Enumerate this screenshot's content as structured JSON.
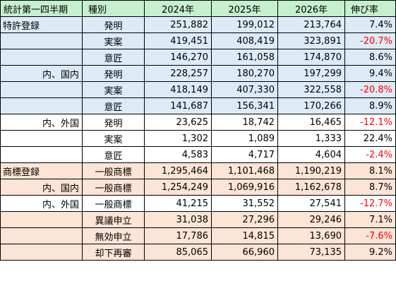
{
  "header": {
    "period": "統計第一四半期",
    "kind": "種別",
    "y2024": "2024年",
    "y2025": "2025年",
    "y2026": "2026年",
    "growth": "伸び率"
  },
  "rows": [
    {
      "group": "特許登録",
      "kind": "発明",
      "y2024": "251,882",
      "y2025": "199,012",
      "y2026": "213,764",
      "growth": "7.4%",
      "neg": false,
      "band": "blue",
      "indent": false
    },
    {
      "group": "",
      "kind": "実案",
      "y2024": "419,451",
      "y2025": "408,419",
      "y2026": "323,891",
      "growth": "-20.7%",
      "neg": true,
      "band": "blue",
      "indent": false
    },
    {
      "group": "",
      "kind": "意匠",
      "y2024": "146,270",
      "y2025": "161,058",
      "y2026": "174,870",
      "growth": "8.6%",
      "neg": false,
      "band": "blue",
      "indent": false
    },
    {
      "group": "内、国内",
      "kind": "発明",
      "y2024": "228,257",
      "y2025": "180,270",
      "y2026": "197,299",
      "growth": "9.4%",
      "neg": false,
      "band": "blue",
      "indent": true
    },
    {
      "group": "",
      "kind": "実案",
      "y2024": "418,149",
      "y2025": "407,330",
      "y2026": "322,558",
      "growth": "-20.8%",
      "neg": true,
      "band": "blue",
      "indent": true
    },
    {
      "group": "",
      "kind": "意匠",
      "y2024": "141,687",
      "y2025": "156,341",
      "y2026": "170,266",
      "growth": "8.9%",
      "neg": false,
      "band": "blue",
      "indent": true
    },
    {
      "group": "内、外国",
      "kind": "発明",
      "y2024": "23,625",
      "y2025": "18,742",
      "y2026": "16,465",
      "growth": "-12.1%",
      "neg": true,
      "band": "white",
      "indent": true
    },
    {
      "group": "",
      "kind": "実案",
      "y2024": "1,302",
      "y2025": "1,089",
      "y2026": "1,333",
      "growth": "22.4%",
      "neg": false,
      "band": "white",
      "indent": true
    },
    {
      "group": "",
      "kind": "意匠",
      "y2024": "4,583",
      "y2025": "4,717",
      "y2026": "4,604",
      "growth": "-2.4%",
      "neg": true,
      "band": "white",
      "indent": true
    },
    {
      "group": "商標登録",
      "kind": "一般商標",
      "y2024": "1,295,464",
      "y2025": "1,101,468",
      "y2026": "1,190,219",
      "growth": "8.1%",
      "neg": false,
      "band": "peach",
      "indent": false
    },
    {
      "group": "内、国内",
      "kind": "一般商標",
      "y2024": "1,254,249",
      "y2025": "1,069,916",
      "y2026": "1,162,678",
      "growth": "8.7%",
      "neg": false,
      "band": "peach",
      "indent": true
    },
    {
      "group": "内、外国",
      "kind": "一般商標",
      "y2024": "41,215",
      "y2025": "31,552",
      "y2026": "27,541",
      "growth": "-12.7%",
      "neg": true,
      "band": "peach-w",
      "indent": true
    },
    {
      "group": "",
      "kind": "異議申立",
      "y2024": "31,038",
      "y2025": "27,296",
      "y2026": "29,246",
      "growth": "7.1%",
      "neg": false,
      "band": "peach",
      "indent": false
    },
    {
      "group": "",
      "kind": "無効申立",
      "y2024": "17,786",
      "y2025": "14,815",
      "y2026": "13,690",
      "growth": "-7.6%",
      "neg": true,
      "band": "peach",
      "indent": false
    },
    {
      "group": "",
      "kind": "却下再審",
      "y2024": "85,065",
      "y2025": "66,960",
      "y2026": "73,135",
      "growth": "9.2%",
      "neg": false,
      "band": "peach",
      "indent": false
    }
  ]
}
